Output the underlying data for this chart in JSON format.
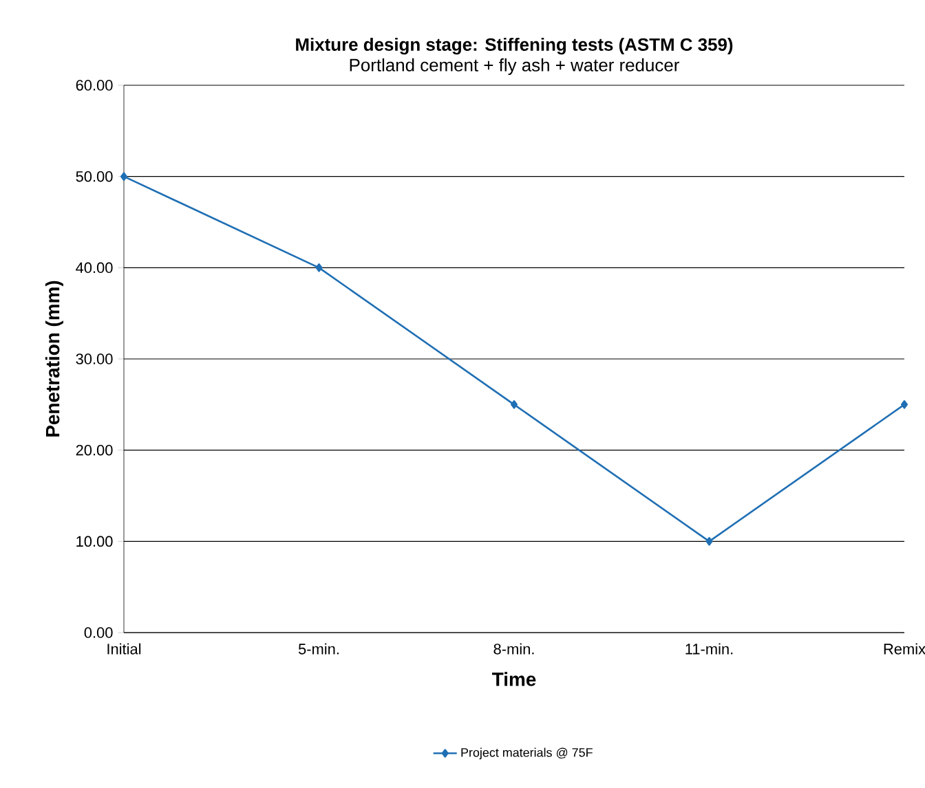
{
  "chart_data": {
    "type": "line",
    "title": "Mixture design stage: Stiffening tests (ASTM C 359)",
    "subtitle": "Portland cement + fly ash + water reducer",
    "xlabel": "Time",
    "ylabel": "Penetration (mm)",
    "categories": [
      "Initial",
      "5-min.",
      "8-min.",
      "11-min.",
      "Remix"
    ],
    "series": [
      {
        "name": "Project materials @ 75F",
        "color": "#1f6fb4",
        "values": [
          50,
          40,
          25,
          10,
          25
        ]
      }
    ],
    "ylim": [
      0,
      60
    ],
    "yticks": [
      {
        "value": 0,
        "label": "0.00"
      },
      {
        "value": 10,
        "label": "10.00"
      },
      {
        "value": 20,
        "label": "20.00"
      },
      {
        "value": 30,
        "label": "30.00"
      },
      {
        "value": 40,
        "label": "40.00"
      },
      {
        "value": 50,
        "label": "50.00"
      },
      {
        "value": 60,
        "label": "60.00"
      }
    ],
    "grid": "y",
    "legend": "bottom",
    "marker": "diamond",
    "line_style": "solid"
  }
}
